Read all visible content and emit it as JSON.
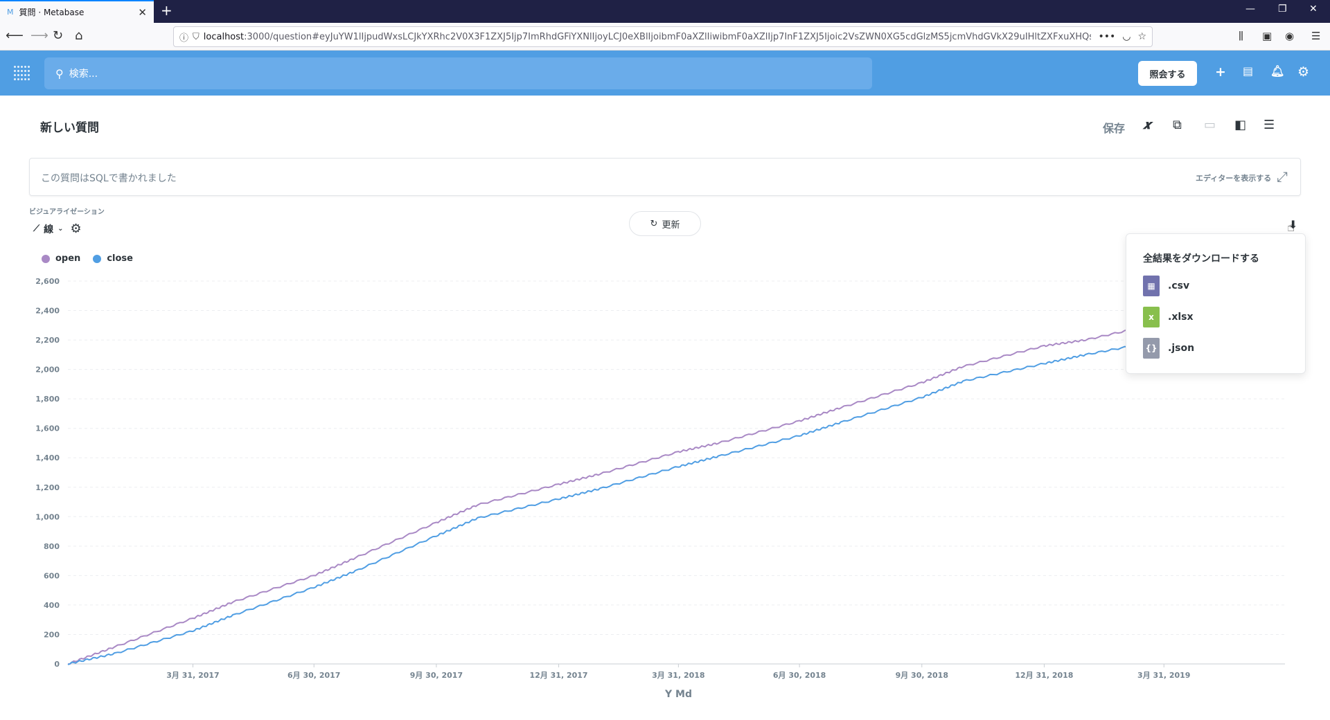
{
  "browser": {
    "tab_title": "質問 · Metabase",
    "tab_favicon": "M",
    "url_host": "localhost",
    "url_path": ":3000/question#eyJuYW1lIjpudWxsLCJkYXRhc2V0X3F1ZXJ5Ijp7ImRhdGFiYXNlIjoyLCJ0eXBlIjoibmF0aXZlIiwibmF0aXZlIjp7InF1ZXJ5Ijoic2VsZWN0XG5cdGlzMS5jcmVhdGVkX29uIHltZXFxuXHQsIC..."
  },
  "header": {
    "search_placeholder": "検索...",
    "ask_button": "照会する"
  },
  "question": {
    "title": "新しい質問",
    "save_label": "保存",
    "sql_notice": "この質問はSQLで書かれました",
    "show_editor": "エディターを表示する",
    "vis_label": "ビジュアライゼーション",
    "vis_type": "線",
    "refresh_label": "更新"
  },
  "download": {
    "title": "全結果をダウンロードする",
    "options": [
      {
        "label": ".csv",
        "color": "#7172ad",
        "glyph": "▦"
      },
      {
        "label": ".xlsx",
        "color": "#88bf4d",
        "glyph": "x"
      },
      {
        "label": ".json",
        "color": "#949aab",
        "glyph": "{}"
      }
    ]
  },
  "chart_data": {
    "type": "line",
    "xlabel": "Y Md",
    "ylabel": "",
    "ylim": [
      0,
      2600
    ],
    "yticks": [
      0,
      200,
      400,
      600,
      800,
      1000,
      1200,
      1400,
      1600,
      1800,
      2000,
      2200,
      2400,
      2600
    ],
    "x_start": "2016-12-27",
    "x_end": "2019-06-30",
    "xticks": [
      {
        "date": "2017-03-31",
        "label": "3月 31, 2017"
      },
      {
        "date": "2017-06-30",
        "label": "6月 30, 2017"
      },
      {
        "date": "2017-09-30",
        "label": "9月 30, 2017"
      },
      {
        "date": "2017-12-31",
        "label": "12月 31, 2017"
      },
      {
        "date": "2018-03-31",
        "label": "3月 31, 2018"
      },
      {
        "date": "2018-06-30",
        "label": "6月 30, 2018"
      },
      {
        "date": "2018-09-30",
        "label": "9月 30, 2018"
      },
      {
        "date": "2018-12-31",
        "label": "12月 31, 2018"
      },
      {
        "date": "2019-03-31",
        "label": "3月 31, 2019"
      }
    ],
    "legend_position": "top-left",
    "grid": true,
    "series": [
      {
        "name": "open",
        "color": "#a989c5",
        "points": [
          [
            "2016-12-27",
            0
          ],
          [
            "2017-01-31",
            115
          ],
          [
            "2017-03-31",
            310
          ],
          [
            "2017-04-30",
            420
          ],
          [
            "2017-06-30",
            600
          ],
          [
            "2017-07-31",
            720
          ],
          [
            "2017-09-30",
            960
          ],
          [
            "2017-10-31",
            1080
          ],
          [
            "2017-12-31",
            1220
          ],
          [
            "2018-01-31",
            1290
          ],
          [
            "2018-03-31",
            1440
          ],
          [
            "2018-04-30",
            1500
          ],
          [
            "2018-06-30",
            1650
          ],
          [
            "2018-07-31",
            1740
          ],
          [
            "2018-09-30",
            1910
          ],
          [
            "2018-10-31",
            2020
          ],
          [
            "2018-12-31",
            2160
          ],
          [
            "2019-01-31",
            2200
          ],
          [
            "2019-03-31",
            2320
          ],
          [
            "2019-04-30",
            2400
          ],
          [
            "2019-06-30",
            2560
          ]
        ]
      },
      {
        "name": "close",
        "color": "#509ee3",
        "points": [
          [
            "2016-12-27",
            0
          ],
          [
            "2017-01-31",
            70
          ],
          [
            "2017-03-31",
            225
          ],
          [
            "2017-04-30",
            330
          ],
          [
            "2017-06-30",
            520
          ],
          [
            "2017-07-31",
            630
          ],
          [
            "2017-09-30",
            870
          ],
          [
            "2017-10-31",
            990
          ],
          [
            "2017-12-31",
            1120
          ],
          [
            "2018-01-31",
            1190
          ],
          [
            "2018-03-31",
            1340
          ],
          [
            "2018-04-30",
            1410
          ],
          [
            "2018-06-30",
            1550
          ],
          [
            "2018-07-31",
            1640
          ],
          [
            "2018-09-30",
            1810
          ],
          [
            "2018-10-31",
            1920
          ],
          [
            "2018-12-31",
            2040
          ],
          [
            "2019-01-31",
            2100
          ],
          [
            "2019-03-31",
            2200
          ],
          [
            "2019-04-30",
            2290
          ],
          [
            "2019-06-30",
            2450
          ]
        ]
      }
    ]
  }
}
